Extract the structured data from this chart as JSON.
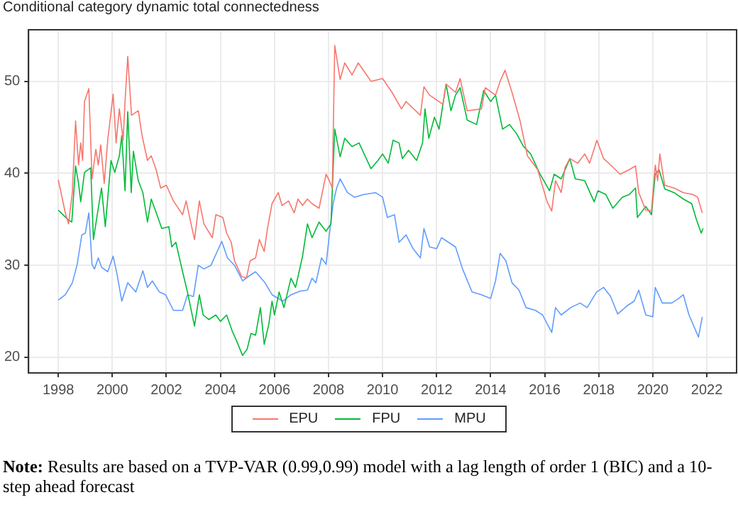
{
  "chart_data": {
    "type": "line",
    "title": "Conditional category dynamic total connectedness",
    "xlim": [
      1996.9,
      2023.1
    ],
    "xticks": [
      1998,
      2000,
      2002,
      2004,
      2006,
      2008,
      2010,
      2012,
      2014,
      2016,
      2018,
      2020,
      2022
    ],
    "ylim": [
      18.3,
      55.6
    ],
    "yticks": [
      20,
      30,
      40,
      50
    ],
    "grid": true,
    "legend": "bottom",
    "marker": "none",
    "line_style": "solid",
    "annotations": [
      "Note: Results are based on a TVP-VAR (0.99,0.99) model with a lag length of order 1 (BIC) and a 10-step ahead forecast"
    ],
    "series": [
      {
        "name": "EPU",
        "color": "#f8766d",
        "x": [
          1998.0,
          1998.26,
          1998.38,
          1998.52,
          1998.64,
          1998.75,
          1998.83,
          1998.9,
          1998.97,
          1999.13,
          1999.25,
          1999.39,
          1999.48,
          1999.57,
          1999.7,
          1999.83,
          2000.03,
          2000.14,
          2000.26,
          2000.4,
          2000.47,
          2000.57,
          2000.71,
          2000.96,
          2001.1,
          2001.3,
          2001.44,
          2001.62,
          2001.79,
          2002.0,
          2002.26,
          2002.6,
          2002.73,
          2003.04,
          2003.22,
          2003.39,
          2003.7,
          2003.83,
          2004.09,
          2004.23,
          2004.4,
          2004.52,
          2004.78,
          2004.96,
          2005.1,
          2005.3,
          2005.44,
          2005.62,
          2005.74,
          2005.91,
          2006.14,
          2006.28,
          2006.52,
          2006.73,
          2006.87,
          2007.04,
          2007.22,
          2007.39,
          2007.65,
          2007.91,
          2008.03,
          2008.14,
          2008.23,
          2008.43,
          2008.6,
          2008.87,
          2009.1,
          2009.57,
          2010.0,
          2010.35,
          2010.7,
          2010.87,
          2011.4,
          2011.53,
          2011.74,
          2012.23,
          2012.35,
          2012.7,
          2012.87,
          2013.13,
          2013.66,
          2013.8,
          2014.18,
          2014.35,
          2014.53,
          2014.79,
          2015.08,
          2015.36,
          2015.74,
          2016.09,
          2016.26,
          2016.4,
          2016.61,
          2016.75,
          2016.93,
          2017.22,
          2017.48,
          2017.66,
          2017.93,
          2018.18,
          2018.44,
          2018.79,
          2019.13,
          2019.36,
          2019.48,
          2019.74,
          2019.95,
          2020.09,
          2020.18,
          2020.26,
          2020.44,
          2020.79,
          2021.13,
          2021.48,
          2021.66,
          2021.83
        ],
        "values": [
          39.3,
          35.7,
          34.5,
          37.9,
          45.7,
          40.9,
          43.3,
          41.4,
          47.8,
          49.2,
          39.4,
          42.6,
          40.9,
          43.1,
          38.9,
          43.6,
          48.6,
          43.3,
          47,
          43.6,
          47.8,
          52.7,
          46.3,
          46.8,
          44.1,
          41.4,
          41.9,
          40.4,
          38.4,
          38.7,
          37,
          35.5,
          37,
          32.8,
          37,
          34.5,
          33,
          35.5,
          35.2,
          33.5,
          32.5,
          30.5,
          28.8,
          28.6,
          30.5,
          30.8,
          32.8,
          31.5,
          34,
          36.7,
          37.9,
          36.5,
          37,
          35.7,
          37.2,
          36.5,
          37.2,
          36.7,
          36.2,
          39.9,
          39.2,
          38.4,
          53.9,
          50.2,
          52,
          50.7,
          52,
          50,
          50.3,
          48.8,
          47,
          47.8,
          46.3,
          49.4,
          48.5,
          47.5,
          49.7,
          48.8,
          50.3,
          46.8,
          47,
          49.3,
          48.5,
          50,
          51.2,
          48.8,
          45.8,
          41.9,
          40.4,
          36.9,
          35.9,
          39.2,
          37.9,
          40.6,
          41.6,
          41.1,
          42.1,
          41.1,
          43.6,
          41.6,
          40.9,
          39.9,
          40.4,
          40.8,
          37.9,
          36,
          35.9,
          40.9,
          39.2,
          42.1,
          38.7,
          38.4,
          37.9,
          37.7,
          37.4,
          35.7
        ]
      },
      {
        "name": "FPU",
        "color": "#00ba38",
        "x": [
          1998.0,
          1998.35,
          1998.5,
          1998.64,
          1998.75,
          1998.83,
          1998.97,
          1999.2,
          1999.3,
          1999.48,
          1999.6,
          1999.74,
          1999.95,
          2000.09,
          2000.26,
          2000.35,
          2000.47,
          2000.57,
          2000.7,
          2000.78,
          2000.96,
          2001.13,
          2001.3,
          2001.44,
          2001.65,
          2001.83,
          2002.09,
          2002.2,
          2002.35,
          2002.6,
          2002.78,
          2003.04,
          2003.22,
          2003.36,
          2003.57,
          2003.83,
          2004.0,
          2004.23,
          2004.43,
          2004.61,
          2004.82,
          2004.99,
          2005.13,
          2005.3,
          2005.48,
          2005.62,
          2005.79,
          2005.91,
          2006.0,
          2006.17,
          2006.35,
          2006.61,
          2006.78,
          2007.04,
          2007.22,
          2007.39,
          2007.65,
          2007.91,
          2008.09,
          2008.23,
          2008.43,
          2008.6,
          2008.87,
          2009.13,
          2009.57,
          2009.83,
          2010.0,
          2010.21,
          2010.39,
          2010.61,
          2010.73,
          2010.96,
          2011.26,
          2011.48,
          2011.57,
          2011.71,
          2011.92,
          2012.09,
          2012.35,
          2012.53,
          2012.7,
          2012.87,
          2013.13,
          2013.48,
          2013.74,
          2014.0,
          2014.18,
          2014.44,
          2014.7,
          2014.96,
          2015.22,
          2015.48,
          2015.83,
          2016.18,
          2016.35,
          2016.61,
          2016.93,
          2017.13,
          2017.48,
          2017.83,
          2017.97,
          2018.26,
          2018.52,
          2018.87,
          2019.13,
          2019.36,
          2019.43,
          2019.74,
          2019.95,
          2020.09,
          2020.23,
          2020.44,
          2020.79,
          2021.13,
          2021.44,
          2021.61,
          2021.79,
          2021.86
        ],
        "values": [
          36,
          35,
          34.7,
          40.8,
          38.9,
          36.9,
          40.1,
          40.6,
          32.8,
          36.2,
          38.4,
          34.2,
          41.4,
          40.1,
          41.9,
          44.1,
          38.1,
          46.7,
          37.9,
          42.4,
          39.2,
          37.9,
          34.7,
          37.2,
          35.5,
          34,
          34.2,
          32,
          32.5,
          29.3,
          27.1,
          23.4,
          26.8,
          24.6,
          24.1,
          24.6,
          23.9,
          24.6,
          22.9,
          21.7,
          20.2,
          20.9,
          22.6,
          22.4,
          25.4,
          21.4,
          23.6,
          26.1,
          24.6,
          27.1,
          25.4,
          28.6,
          27.6,
          31,
          34.5,
          33,
          34.7,
          33.7,
          34.5,
          44.8,
          41.8,
          43.8,
          42.9,
          43.3,
          40.5,
          41.4,
          42.1,
          41.1,
          43.6,
          43.3,
          41.6,
          42.5,
          41.4,
          43.3,
          47,
          43.8,
          46.1,
          44.8,
          49.7,
          46.8,
          48.5,
          49.3,
          45.8,
          45.3,
          49,
          47.8,
          48.5,
          44.8,
          45.3,
          44.3,
          42.9,
          42.1,
          39.9,
          38.1,
          39.9,
          39.4,
          41.6,
          39.4,
          39.2,
          36.9,
          38.1,
          37.7,
          36.2,
          37.4,
          37.7,
          38.4,
          35.2,
          36.4,
          35.5,
          39.9,
          40.4,
          38.3,
          37.9,
          37.2,
          36.7,
          35,
          33.5,
          34
        ]
      },
      {
        "name": "MPU",
        "color": "#619cff",
        "x": [
          1998.0,
          1998.26,
          1998.52,
          1998.7,
          1998.87,
          1999.0,
          1999.13,
          1999.25,
          1999.34,
          1999.48,
          1999.6,
          1999.83,
          2000.03,
          2000.17,
          2000.35,
          2000.57,
          2000.87,
          2001.13,
          2001.3,
          2001.48,
          2001.74,
          2001.97,
          2002.26,
          2002.6,
          2002.78,
          2003.0,
          2003.18,
          2003.39,
          2003.65,
          2003.88,
          2004.05,
          2004.26,
          2004.52,
          2004.82,
          2005.04,
          2005.3,
          2005.65,
          2005.91,
          2006.31,
          2006.61,
          2006.96,
          2007.22,
          2007.39,
          2007.53,
          2007.74,
          2007.91,
          2008.03,
          2008.17,
          2008.3,
          2008.43,
          2008.7,
          2008.96,
          2009.31,
          2009.74,
          2010.0,
          2010.18,
          2010.44,
          2010.61,
          2010.87,
          2011.13,
          2011.4,
          2011.53,
          2011.74,
          2012.0,
          2012.18,
          2012.44,
          2012.7,
          2012.96,
          2013.31,
          2013.66,
          2014.0,
          2014.18,
          2014.35,
          2014.56,
          2014.79,
          2015.05,
          2015.31,
          2015.66,
          2015.92,
          2016.26,
          2016.4,
          2016.61,
          2016.96,
          2017.31,
          2017.57,
          2017.92,
          2018.18,
          2018.44,
          2018.7,
          2019.05,
          2019.31,
          2019.48,
          2019.74,
          2020.0,
          2020.09,
          2020.35,
          2020.7,
          2020.96,
          2021.13,
          2021.34,
          2021.69,
          2021.83
        ],
        "values": [
          26.2,
          26.8,
          28.1,
          30.1,
          33.3,
          33.5,
          35.7,
          30.1,
          29.6,
          30.8,
          29.8,
          29.3,
          31,
          29.1,
          26.1,
          28.1,
          27.1,
          29.4,
          27.6,
          28.3,
          27.1,
          26.8,
          25.1,
          25.1,
          26.8,
          26.6,
          30,
          29.6,
          30,
          31.5,
          32.6,
          30.8,
          30,
          28.3,
          28.8,
          29.3,
          28.1,
          26.8,
          26.1,
          26.8,
          27.2,
          27.3,
          28.6,
          28.1,
          30.8,
          30.1,
          33.3,
          36.7,
          38.4,
          39.4,
          37.9,
          37.4,
          37.7,
          37.9,
          37.4,
          35.2,
          35.5,
          32.5,
          33.3,
          31.8,
          30.8,
          34,
          32,
          31.8,
          33,
          32.5,
          32,
          29.6,
          27.1,
          26.8,
          26.4,
          28.3,
          31.3,
          30.5,
          28.1,
          27.3,
          25.4,
          25.1,
          24.6,
          22.7,
          25.4,
          24.6,
          25.4,
          25.9,
          25.4,
          27.1,
          27.6,
          26.6,
          24.7,
          25.6,
          26.1,
          27.3,
          24.6,
          24.4,
          27.6,
          25.9,
          25.9,
          26.4,
          26.8,
          24.6,
          22.2,
          24.4
        ]
      }
    ]
  }
}
